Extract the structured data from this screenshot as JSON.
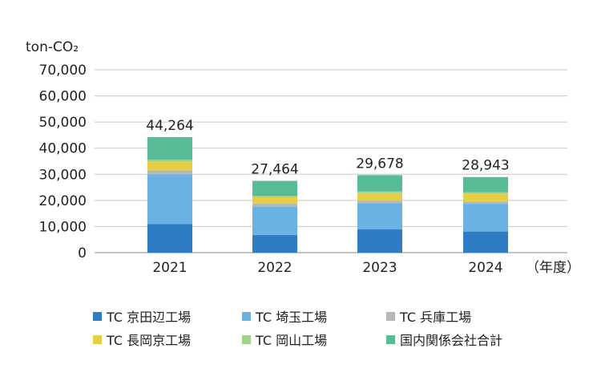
{
  "chart_data": {
    "type": "bar",
    "stacked": true,
    "unit_label": "ton-CO₂",
    "x_unit_label": "（年度）",
    "categories": [
      "2021",
      "2022",
      "2023",
      "2024"
    ],
    "totals": [
      "44,264",
      "27,464",
      "29,678",
      "28,943"
    ],
    "ylim": [
      0,
      70000
    ],
    "yticks": [
      "0",
      "10,000",
      "20,000",
      "30,000",
      "40,000",
      "50,000",
      "60,000",
      "70,000"
    ],
    "grid": true,
    "legend_position": "bottom",
    "series": [
      {
        "name": "TC 京田辺工場",
        "color": "#2e7cc4",
        "values": [
          11000,
          6800,
          8900,
          8100
        ]
      },
      {
        "name": "TC 埼玉工場",
        "color": "#6ab2e4",
        "values": [
          19000,
          10800,
          10000,
          10600
        ]
      },
      {
        "name": "TC 兵庫工場",
        "color": "#b4b9b6",
        "values": [
          1500,
          1200,
          1000,
          900
        ]
      },
      {
        "name": "TC 長岡京工場",
        "color": "#e6cf45",
        "values": [
          3300,
          2400,
          2900,
          2900
        ]
      },
      {
        "name": "TC 岡山工場",
        "color": "#a3d28a",
        "values": [
          800,
          500,
          600,
          600
        ]
      },
      {
        "name": "国内関係会社合計",
        "color": "#57bb95",
        "values": [
          8664,
          5764,
          6278,
          5843
        ]
      }
    ]
  }
}
